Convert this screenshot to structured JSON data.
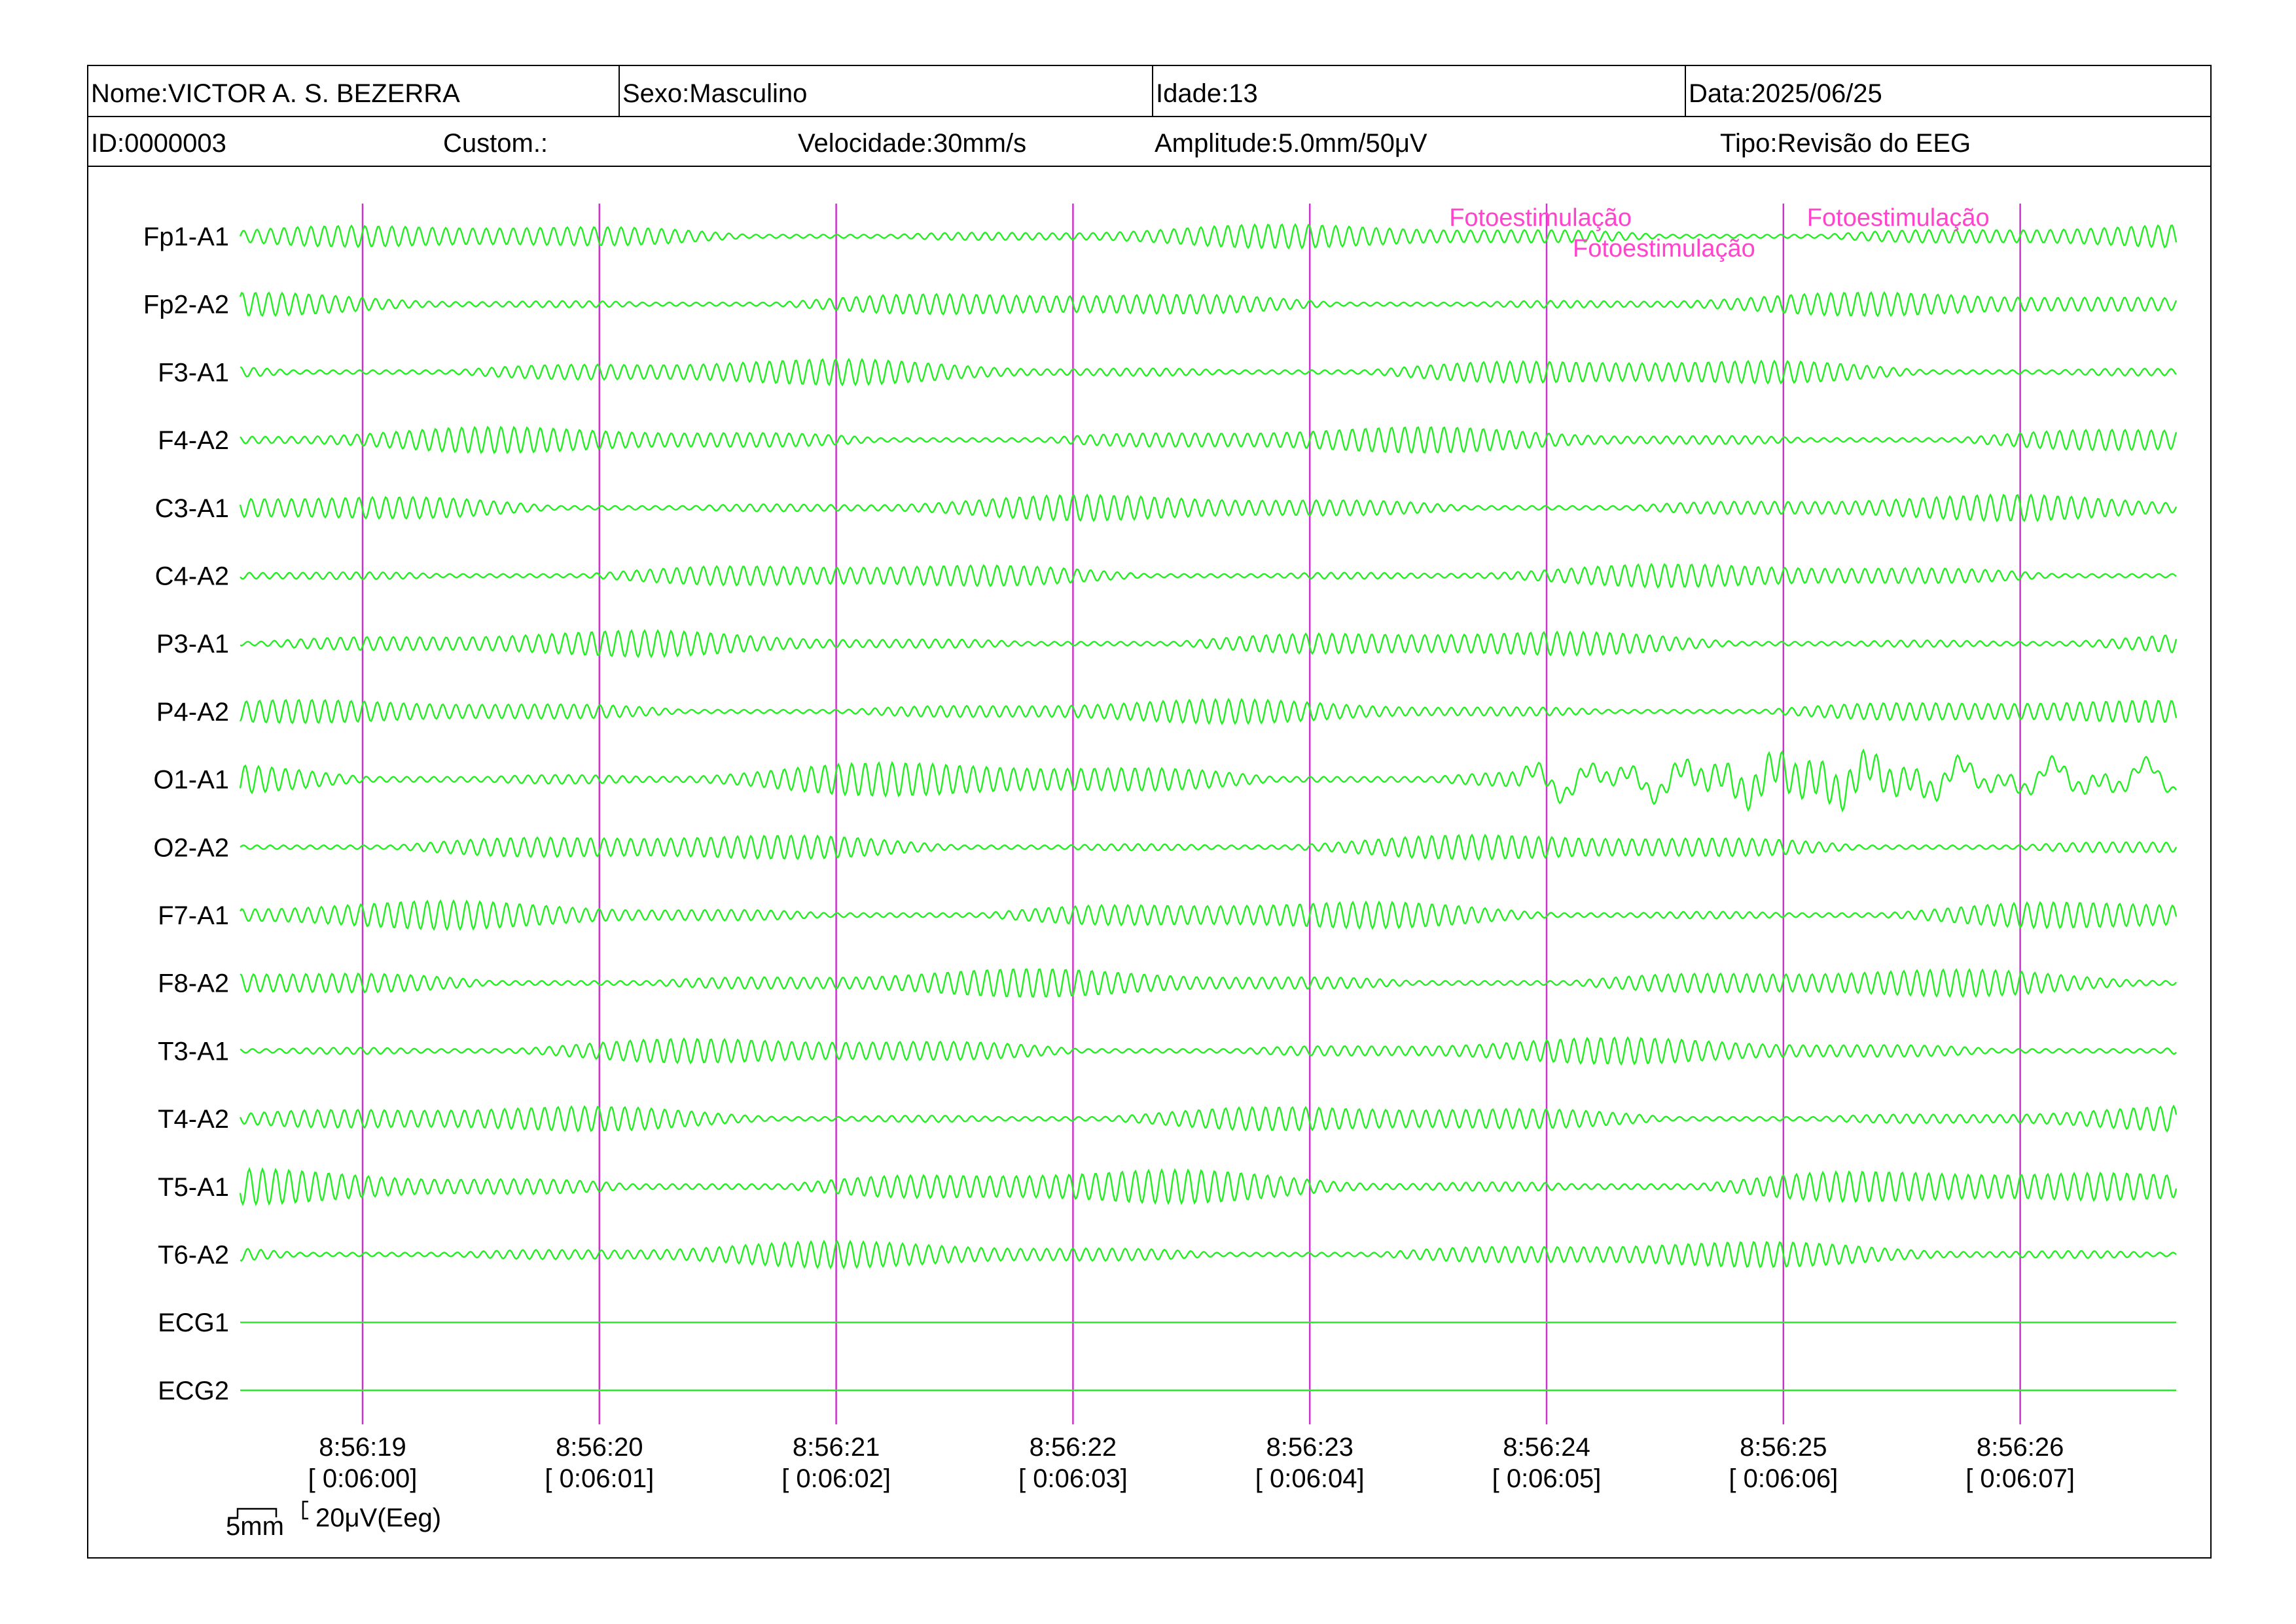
{
  "header": {
    "name": "Nome:VICTOR A. S. BEZERRA",
    "sex": "Sexo:Masculino",
    "age": "Idade:13",
    "date": "Data:2025/06/25",
    "id": "ID:0000003",
    "custom": "Custom.:",
    "speed": "Velocidade:30mm/s",
    "amplitude": "Amplitude:5.0mm/50μV",
    "type": "Tipo:Revisão do EEG"
  },
  "channels": [
    {
      "label": "Fp1-A1",
      "amplitude": 0.55
    },
    {
      "label": "Fp2-A2",
      "amplitude": 0.55
    },
    {
      "label": "F3-A1",
      "amplitude": 0.6
    },
    {
      "label": "F4-A2",
      "amplitude": 0.6
    },
    {
      "label": "C3-A1",
      "amplitude": 0.6
    },
    {
      "label": "C4-A2",
      "amplitude": 0.55
    },
    {
      "label": "P3-A1",
      "amplitude": 0.6
    },
    {
      "label": "P4-A2",
      "amplitude": 0.55
    },
    {
      "label": "O1-A1",
      "amplitude": 0.8
    },
    {
      "label": "O2-A2",
      "amplitude": 0.6
    },
    {
      "label": "F7-A1",
      "amplitude": 0.65
    },
    {
      "label": "F8-A2",
      "amplitude": 0.65
    },
    {
      "label": "T3-A1",
      "amplitude": 0.6
    },
    {
      "label": "T4-A2",
      "amplitude": 0.6
    },
    {
      "label": "T5-A1",
      "amplitude": 0.8
    },
    {
      "label": "T6-A2",
      "amplitude": 0.6
    },
    {
      "label": "ECG1",
      "amplitude": 0
    },
    {
      "label": "ECG2",
      "amplitude": 0
    }
  ],
  "time_markers": [
    {
      "clock": "8:56:19",
      "elapsed": "[ 0:06:00]"
    },
    {
      "clock": "8:56:20",
      "elapsed": "[ 0:06:01]"
    },
    {
      "clock": "8:56:21",
      "elapsed": "[ 0:06:02]"
    },
    {
      "clock": "8:56:22",
      "elapsed": "[ 0:06:03]"
    },
    {
      "clock": "8:56:23",
      "elapsed": "[ 0:06:04]"
    },
    {
      "clock": "8:56:24",
      "elapsed": "[ 0:06:05]"
    },
    {
      "clock": "8:56:25",
      "elapsed": "[ 0:06:06]"
    },
    {
      "clock": "8:56:26",
      "elapsed": "[ 0:06:07]"
    }
  ],
  "annotations": [
    {
      "text": "Fotoestimulação",
      "time": "8:56:24",
      "placement": "left-of-marker"
    },
    {
      "text": "Fotoestimulação",
      "time": "8:56:24",
      "placement": "right-of-marker"
    },
    {
      "text": "Fotoestimulação",
      "time": "8:56:25",
      "placement": "right-of-marker"
    }
  ],
  "scale": {
    "time_label": "5mm",
    "amplitude_label": "20μV(Eeg)"
  },
  "colors": {
    "trace": "#22ee22",
    "marker": "#cc33cc",
    "annotation": "#ff44cc",
    "text": "#000000"
  }
}
